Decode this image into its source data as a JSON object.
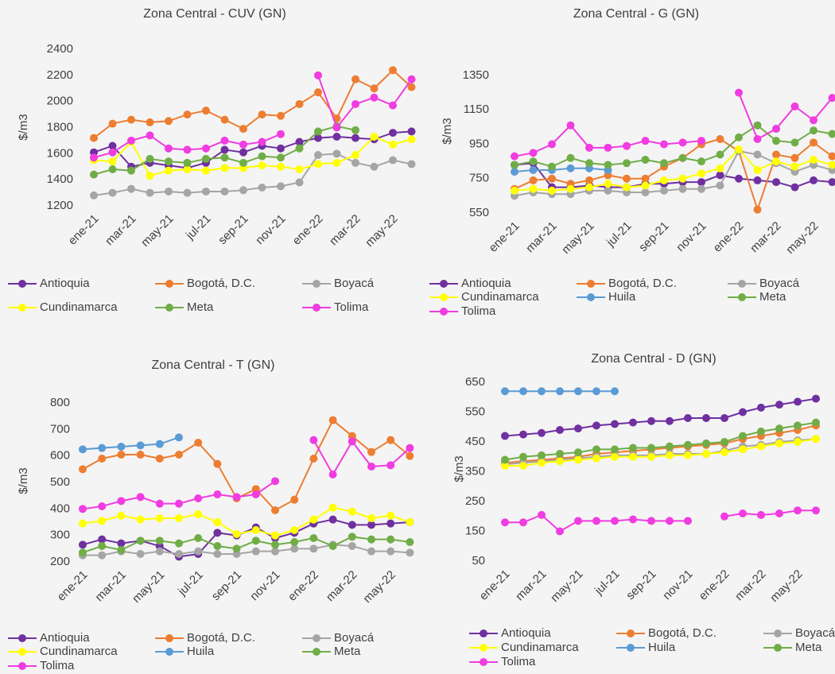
{
  "chart_data": [
    {
      "type": "line",
      "title": "Zona Central - CUV (GN)",
      "y_label": "$/m3",
      "categories": [
        "ene-21",
        null,
        "mar-21",
        null,
        "may-21",
        null,
        "jul-21",
        null,
        "sep-21",
        null,
        "nov-21",
        null,
        "ene-22",
        null,
        "mar-22",
        null,
        "may-22",
        null
      ],
      "ylim": [
        1200,
        2400
      ],
      "yticks": [
        1200,
        1400,
        1600,
        1800,
        2000,
        2200,
        2400
      ],
      "legend": "bottom",
      "series": [
        {
          "name": "Antioquia",
          "color": "#7030a0",
          "values": [
            1610,
            1660,
            1500,
            1530,
            1510,
            1490,
            1530,
            1630,
            1610,
            1660,
            1640,
            1690,
            1720,
            1730,
            1720,
            1710,
            1760,
            1770
          ]
        },
        {
          "name": "Bogotá, D.C.",
          "color": "#ed7d31",
          "values": [
            1720,
            1830,
            1860,
            1840,
            1850,
            1900,
            1930,
            1860,
            1790,
            1900,
            1890,
            1980,
            2070,
            1870,
            2170,
            2100,
            2240,
            2110
          ]
        },
        {
          "name": "Boyacá",
          "color": "#a5a5a5",
          "values": [
            1280,
            1300,
            1330,
            1300,
            1310,
            1300,
            1310,
            1310,
            1320,
            1340,
            1350,
            1380,
            1590,
            1600,
            1530,
            1500,
            1550,
            1520
          ]
        },
        {
          "name": "Cundinamarca",
          "color": "#ffff00",
          "values": [
            1550,
            1540,
            1690,
            1430,
            1470,
            1480,
            1470,
            1490,
            1490,
            1510,
            1500,
            1480,
            1520,
            1530,
            1590,
            1730,
            1670,
            1710
          ]
        },
        {
          "name": "Meta",
          "color": "#70ad47",
          "values": [
            1440,
            1480,
            1470,
            1560,
            1540,
            1530,
            1560,
            1570,
            1530,
            1580,
            1570,
            1640,
            1770,
            1810,
            1780,
            null,
            null,
            null
          ]
        },
        {
          "name": "Tolima",
          "color": "#f03ce0",
          "values": [
            1570,
            1610,
            1700,
            1740,
            1640,
            1630,
            1640,
            1700,
            1670,
            1690,
            1750,
            null,
            2200,
            1800,
            1980,
            2030,
            1970,
            2170
          ]
        }
      ]
    },
    {
      "type": "line",
      "title": "Zona Central - G (GN)",
      "y_label": "$/m3",
      "categories": [
        "ene-21",
        null,
        "mar-21",
        null,
        "may-21",
        null,
        "jul-21",
        null,
        "sep-21",
        null,
        "nov-21",
        null,
        "ene-22",
        null,
        "mar-22",
        null,
        "may-22",
        null
      ],
      "ylim": [
        550,
        1350
      ],
      "yticks": [
        550,
        750,
        950,
        1150,
        1350
      ],
      "legend": "bottom",
      "series": [
        {
          "name": "Antioquia",
          "color": "#7030a0",
          "values": [
            830,
            840,
            700,
            700,
            710,
            700,
            700,
            720,
            720,
            730,
            730,
            770,
            750,
            740,
            730,
            700,
            740,
            730
          ]
        },
        {
          "name": "Bogotá, D.C.",
          "color": "#ed7d31",
          "values": [
            690,
            740,
            750,
            720,
            740,
            770,
            750,
            750,
            820,
            870,
            950,
            980,
            910,
            570,
            890,
            870,
            960,
            880
          ]
        },
        {
          "name": "Boyacá",
          "color": "#a5a5a5",
          "values": [
            650,
            670,
            660,
            660,
            680,
            680,
            670,
            670,
            680,
            690,
            690,
            710,
            910,
            890,
            840,
            790,
            830,
            800
          ]
        },
        {
          "name": "Cundinamarca",
          "color": "#ffff00",
          "values": [
            680,
            690,
            680,
            690,
            700,
            720,
            700,
            710,
            740,
            750,
            780,
            810,
            920,
            800,
            850,
            820,
            860,
            830
          ]
        },
        {
          "name": "Huila",
          "color": "#5b9bd5",
          "values": [
            790,
            800,
            800,
            810,
            810,
            800,
            null,
            null,
            null,
            null,
            null,
            null,
            null,
            null,
            null,
            null,
            null,
            null
          ]
        },
        {
          "name": "Meta",
          "color": "#70ad47",
          "values": [
            830,
            850,
            820,
            870,
            840,
            830,
            840,
            860,
            840,
            870,
            850,
            890,
            990,
            1060,
            970,
            960,
            1030,
            1010
          ]
        },
        {
          "name": "Tolima",
          "color": "#f03ce0",
          "values": [
            880,
            900,
            950,
            1060,
            930,
            930,
            940,
            970,
            950,
            960,
            970,
            null,
            1250,
            980,
            1040,
            1170,
            1090,
            1220
          ]
        }
      ]
    },
    {
      "type": "line",
      "title": "Zona Central - T (GN)",
      "y_label": "$/m3",
      "categories": [
        "ene-21",
        null,
        "mar-21",
        null,
        "may-21",
        null,
        "jul-21",
        null,
        "sep-21",
        null,
        "nov-21",
        null,
        "ene-22",
        null,
        "mar-22",
        null,
        "may-22",
        null
      ],
      "ylim": [
        200,
        800
      ],
      "yticks": [
        200,
        300,
        400,
        500,
        600,
        700,
        800
      ],
      "legend": "bottom",
      "series": [
        {
          "name": "Antioquia",
          "color": "#7030a0",
          "values": [
            265,
            285,
            270,
            280,
            260,
            220,
            230,
            310,
            300,
            330,
            290,
            310,
            345,
            360,
            340,
            340,
            345,
            350
          ]
        },
        {
          "name": "Bogotá, D.C.",
          "color": "#ed7d31",
          "values": [
            550,
            590,
            605,
            605,
            590,
            605,
            650,
            570,
            440,
            475,
            395,
            435,
            590,
            735,
            675,
            615,
            660,
            600
          ]
        },
        {
          "name": "Boyacá",
          "color": "#a5a5a5",
          "values": [
            225,
            225,
            240,
            230,
            240,
            230,
            240,
            230,
            230,
            240,
            240,
            250,
            250,
            265,
            260,
            240,
            240,
            235
          ]
        },
        {
          "name": "Cundinamarca",
          "color": "#ffff00",
          "values": [
            345,
            355,
            375,
            360,
            365,
            365,
            380,
            350,
            305,
            320,
            300,
            320,
            360,
            405,
            390,
            365,
            375,
            350
          ]
        },
        {
          "name": "Huila",
          "color": "#5b9bd5",
          "values": [
            625,
            630,
            635,
            640,
            645,
            670,
            null,
            null,
            null,
            null,
            null,
            null,
            null,
            null,
            null,
            null,
            null,
            null
          ]
        },
        {
          "name": "Meta",
          "color": "#70ad47",
          "values": [
            235,
            260,
            245,
            280,
            280,
            270,
            290,
            260,
            250,
            280,
            265,
            275,
            290,
            260,
            295,
            285,
            285,
            275
          ]
        },
        {
          "name": "Tolima",
          "color": "#f03ce0",
          "values": [
            400,
            410,
            430,
            445,
            420,
            420,
            440,
            455,
            445,
            455,
            505,
            null,
            660,
            530,
            655,
            560,
            565,
            630
          ]
        }
      ]
    },
    {
      "type": "line",
      "title": "Zona Central - D (GN)",
      "y_label": "$/m3",
      "categories": [
        "ene-21",
        null,
        "mar-21",
        null,
        "may-21",
        null,
        "jul-21",
        null,
        "sep-21",
        null,
        "nov-21",
        null,
        "ene-22",
        null,
        "mar-22",
        null,
        "may-22",
        null
      ],
      "ylim": [
        50,
        650
      ],
      "yticks": [
        50,
        150,
        250,
        350,
        450,
        550,
        650
      ],
      "legend": "bottom",
      "series": [
        {
          "name": "Antioquia",
          "color": "#7030a0",
          "values": [
            470,
            475,
            480,
            490,
            495,
            505,
            510,
            515,
            520,
            520,
            530,
            530,
            530,
            550,
            565,
            575,
            585,
            595
          ]
        },
        {
          "name": "Bogotá, D.C.",
          "color": "#ed7d31",
          "values": [
            380,
            385,
            390,
            395,
            400,
            410,
            415,
            420,
            425,
            430,
            435,
            440,
            445,
            460,
            470,
            480,
            490,
            505
          ]
        },
        {
          "name": "Boyacá",
          "color": "#a5a5a5",
          "values": [
            375,
            380,
            385,
            390,
            395,
            400,
            405,
            405,
            405,
            410,
            410,
            410,
            420,
            435,
            440,
            450,
            455,
            460
          ]
        },
        {
          "name": "Cundinamarca",
          "color": "#ffff00",
          "values": [
            370,
            370,
            380,
            385,
            390,
            395,
            400,
            400,
            400,
            405,
            405,
            410,
            415,
            425,
            435,
            445,
            450,
            460
          ]
        },
        {
          "name": "Huila",
          "color": "#5b9bd5",
          "values": [
            620,
            620,
            620,
            620,
            620,
            620,
            620,
            null,
            null,
            null,
            null,
            null,
            null,
            null,
            null,
            null,
            null,
            null
          ]
        },
        {
          "name": "Meta",
          "color": "#70ad47",
          "values": [
            390,
            400,
            405,
            410,
            415,
            425,
            425,
            430,
            430,
            435,
            440,
            445,
            450,
            470,
            485,
            495,
            505,
            515
          ]
        },
        {
          "name": "Tolima",
          "color": "#f03ce0",
          "values": [
            180,
            180,
            205,
            150,
            185,
            185,
            185,
            190,
            185,
            185,
            185,
            null,
            200,
            210,
            205,
            210,
            220,
            220
          ]
        }
      ]
    }
  ]
}
